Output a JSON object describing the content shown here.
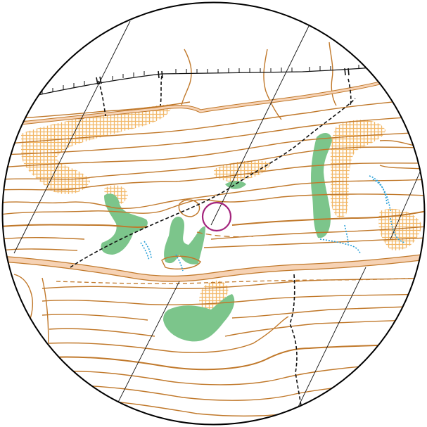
{
  "map": {
    "type": "orienteering-map-excerpt",
    "colors": {
      "contour": "#c0782a",
      "road_fill": "#f6d2b4",
      "road_edge": "#c0782a",
      "vegetation_green": "#7cc58b",
      "rough_open": "#f7c98a",
      "water_blue": "#2aa0d8",
      "control_circle": "#a3237c",
      "track": "#111111",
      "magnetic_north_line": "#111111",
      "frame": "#000000",
      "background": "#ffffff"
    },
    "features": {
      "control_circle_icon": "control-circle",
      "frame_shape": "circle",
      "magnetic_north_lines": 5,
      "has_fence": true,
      "has_stream": true,
      "has_road": true,
      "has_dashed_track": true
    }
  }
}
